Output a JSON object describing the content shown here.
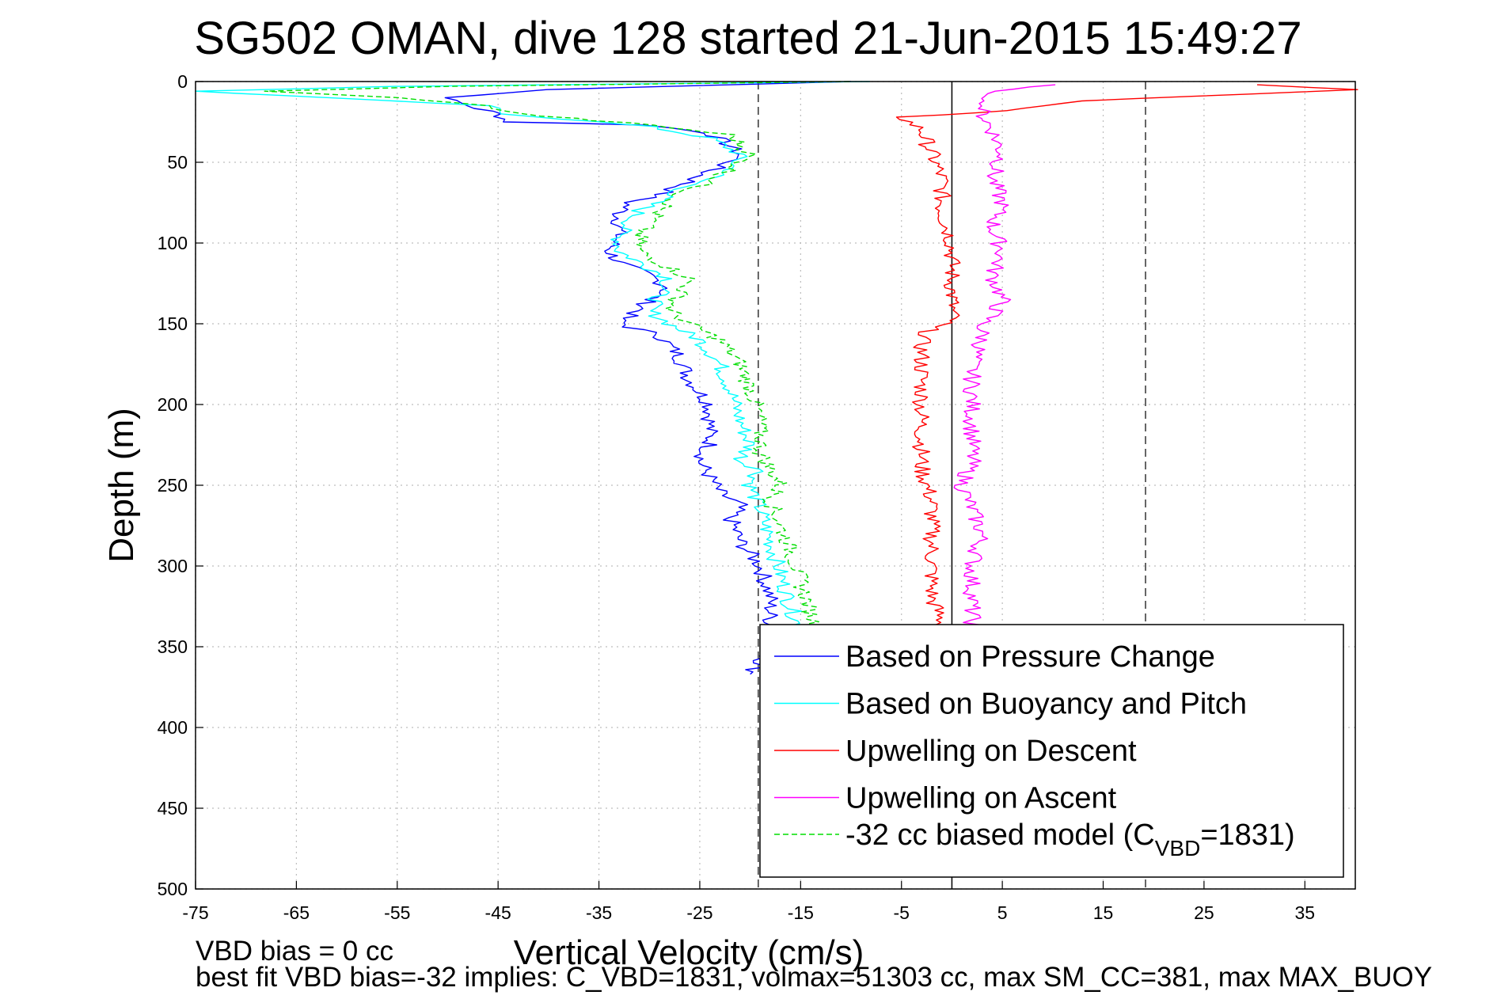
{
  "chart_data": {
    "type": "line",
    "title": "SG502 OMAN, dive 128 started 21-Jun-2015 15:49:27",
    "xlabel": "Vertical Velocity (cm/s)",
    "ylabel": "Depth (m)",
    "xlim": [
      -75,
      40
    ],
    "ylim": [
      0,
      500
    ],
    "y_reversed": true,
    "grid": true,
    "legend_position": "bottom-right",
    "x_ticks": [
      "-75",
      "-65",
      "-55",
      "-45",
      "-35",
      "-25",
      "-15",
      "-5",
      "5",
      "15",
      "25",
      "35"
    ],
    "y_ticks": [
      "0",
      "50",
      "100",
      "150",
      "200",
      "250",
      "300",
      "350",
      "400",
      "450",
      "500"
    ],
    "reference_lines": {
      "dashed_x": [
        -19.2,
        19.2
      ],
      "solid_x": [
        0
      ]
    },
    "series": [
      {
        "name": "Based on Pressure Change",
        "color": "#0000ff",
        "style": "solid",
        "points": [
          [
            -10,
            0
          ],
          [
            -40,
            5
          ],
          [
            -50,
            10
          ],
          [
            -48,
            15
          ],
          [
            -45,
            20
          ],
          [
            -44,
            25
          ],
          [
            -30,
            27
          ],
          [
            -24,
            32
          ],
          [
            -22,
            40
          ],
          [
            -21,
            45
          ],
          [
            -22,
            50
          ],
          [
            -24,
            55
          ],
          [
            -26,
            62
          ],
          [
            -29,
            70
          ],
          [
            -32,
            75
          ],
          [
            -33,
            82
          ],
          [
            -33,
            95
          ],
          [
            -34,
            105
          ],
          [
            -33,
            112
          ],
          [
            -30,
            120
          ],
          [
            -28,
            128
          ],
          [
            -30,
            135
          ],
          [
            -31,
            142
          ],
          [
            -33,
            148
          ],
          [
            -32,
            152
          ],
          [
            -29,
            157
          ],
          [
            -27,
            170
          ],
          [
            -26,
            185
          ],
          [
            -24,
            200
          ],
          [
            -24,
            215
          ],
          [
            -24,
            225
          ],
          [
            -25,
            235
          ],
          [
            -24,
            245
          ],
          [
            -23,
            255
          ],
          [
            -21,
            262
          ],
          [
            -22,
            270
          ],
          [
            -21,
            285
          ],
          [
            -19,
            300
          ],
          [
            -18,
            320
          ],
          [
            -18,
            335
          ],
          [
            -18,
            350
          ],
          [
            -19,
            360
          ],
          [
            -20,
            367
          ]
        ]
      },
      {
        "name": "Based on Buoyancy and Pitch",
        "color": "#00ffff",
        "style": "solid",
        "points": [
          [
            -8,
            0
          ],
          [
            -55,
            3
          ],
          [
            -75,
            6
          ],
          [
            -62,
            10
          ],
          [
            -46,
            15
          ],
          [
            -44,
            20
          ],
          [
            -30,
            28
          ],
          [
            -24,
            35
          ],
          [
            -21,
            45
          ],
          [
            -22,
            55
          ],
          [
            -25,
            62
          ],
          [
            -28,
            70
          ],
          [
            -31,
            80
          ],
          [
            -33,
            95
          ],
          [
            -33,
            105
          ],
          [
            -31,
            112
          ],
          [
            -28,
            122
          ],
          [
            -29,
            132
          ],
          [
            -30,
            142
          ],
          [
            -28,
            150
          ],
          [
            -25,
            160
          ],
          [
            -23,
            175
          ],
          [
            -22,
            190
          ],
          [
            -21,
            210
          ],
          [
            -20,
            225
          ],
          [
            -21,
            235
          ],
          [
            -19,
            240
          ],
          [
            -20,
            250
          ],
          [
            -19,
            265
          ],
          [
            -18,
            285
          ],
          [
            -17,
            305
          ],
          [
            -16,
            325
          ],
          [
            -15,
            340
          ],
          [
            -14,
            350
          ]
        ]
      },
      {
        "name": "Upwelling on Descent",
        "color": "#ff0000",
        "style": "solid",
        "points": [
          [
            30,
            2
          ],
          [
            40,
            5
          ],
          [
            13,
            12
          ],
          [
            5,
            18
          ],
          [
            -5,
            22
          ],
          [
            -3,
            30
          ],
          [
            -2,
            45
          ],
          [
            -1,
            60
          ],
          [
            -1,
            80
          ],
          [
            0,
            100
          ],
          [
            0,
            120
          ],
          [
            0,
            140
          ],
          [
            0,
            148
          ],
          [
            -2,
            152
          ],
          [
            -3,
            160
          ],
          [
            -3,
            180
          ],
          [
            -3,
            200
          ],
          [
            -3,
            220
          ],
          [
            -3,
            240
          ],
          [
            -2,
            260
          ],
          [
            -2,
            280
          ],
          [
            -2,
            300
          ],
          [
            -2,
            320
          ],
          [
            -1,
            335
          ],
          [
            -1,
            345
          ]
        ]
      },
      {
        "name": "Upwelling on Ascent",
        "color": "#ff00ff",
        "style": "solid",
        "points": [
          [
            10,
            2
          ],
          [
            4,
            6
          ],
          [
            3,
            12
          ],
          [
            3,
            20
          ],
          [
            4,
            30
          ],
          [
            5,
            45
          ],
          [
            4,
            60
          ],
          [
            5,
            75
          ],
          [
            4,
            90
          ],
          [
            5,
            105
          ],
          [
            4,
            120
          ],
          [
            5,
            135
          ],
          [
            4,
            145
          ],
          [
            3,
            150
          ],
          [
            3,
            160
          ],
          [
            2,
            175
          ],
          [
            2,
            195
          ],
          [
            2,
            215
          ],
          [
            2,
            235
          ],
          [
            1,
            250
          ],
          [
            2,
            265
          ],
          [
            3,
            280
          ],
          [
            2,
            300
          ],
          [
            2,
            320
          ],
          [
            2,
            335
          ],
          [
            3,
            345
          ]
        ]
      },
      {
        "name": "-32 cc biased model (C_VBD=1831)",
        "legend_main": "-32 cc biased model (C",
        "legend_sub": "VBD",
        "legend_tail": "=1831)",
        "color": "#00dd00",
        "style": "dashed",
        "points": [
          [
            -10,
            0
          ],
          [
            -50,
            3
          ],
          [
            -68,
            6
          ],
          [
            -55,
            10
          ],
          [
            -46,
            15
          ],
          [
            -43,
            20
          ],
          [
            -30,
            27
          ],
          [
            -22,
            33
          ],
          [
            -20,
            45
          ],
          [
            -22,
            55
          ],
          [
            -24,
            62
          ],
          [
            -27,
            70
          ],
          [
            -29,
            80
          ],
          [
            -31,
            95
          ],
          [
            -31,
            105
          ],
          [
            -29,
            112
          ],
          [
            -26,
            122
          ],
          [
            -27,
            132
          ],
          [
            -28,
            142
          ],
          [
            -26,
            150
          ],
          [
            -23,
            160
          ],
          [
            -21,
            175
          ],
          [
            -20,
            190
          ],
          [
            -19,
            210
          ],
          [
            -19,
            230
          ],
          [
            -18,
            240
          ],
          [
            -17,
            250
          ],
          [
            -18,
            260
          ],
          [
            -17,
            275
          ],
          [
            -16,
            290
          ],
          [
            -15,
            310
          ],
          [
            -14,
            330
          ],
          [
            -13,
            345
          ]
        ]
      }
    ]
  },
  "footer": {
    "line1": "VBD bias = 0 cc",
    "line2": "best fit VBD bias=-32 implies: C_VBD=1831, volmax=51303 cc, max SM_CC=381, max MAX_BUOY"
  }
}
